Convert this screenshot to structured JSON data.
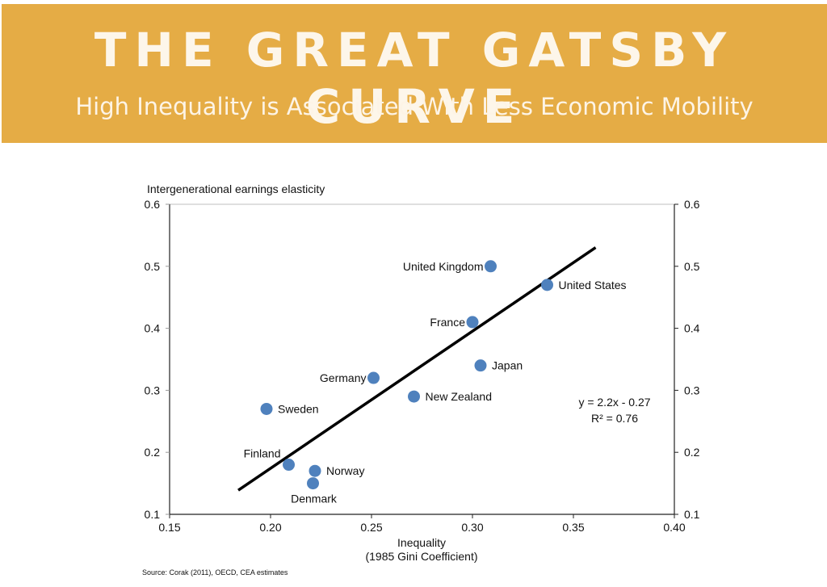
{
  "header": {
    "title": "THE GREAT GATSBY CURVE",
    "subtitle": "High Inequality is Associated With Less Economic Mobility",
    "background_color": "#e5ac45",
    "text_color": "#fdf6ea"
  },
  "source": "Source: Corak (2011), OECD, CEA estimates",
  "chart_data": {
    "type": "scatter",
    "title": "",
    "xlabel": "Inequality",
    "xlabel_line2": "(1985 Gini Coefficient)",
    "ylabel": "Intergenerational earnings elasticity",
    "xlim": [
      0.15,
      0.4
    ],
    "ylim": [
      0.1,
      0.6
    ],
    "x_ticks": [
      "0.15",
      "0.20",
      "0.25",
      "0.30",
      "0.35",
      "0.40"
    ],
    "y_ticks": [
      "0.1",
      "0.2",
      "0.3",
      "0.4",
      "0.5",
      "0.6"
    ],
    "y_ticks_right": [
      "0.1",
      "0.2",
      "0.3",
      "0.4",
      "0.5",
      "0.6"
    ],
    "grid": false,
    "marker_color": "#4f81bd",
    "points": [
      {
        "label": "United Kingdom",
        "x": 0.309,
        "y": 0.5,
        "label_side": "left"
      },
      {
        "label": "United States",
        "x": 0.337,
        "y": 0.47,
        "label_side": "right"
      },
      {
        "label": "France",
        "x": 0.3,
        "y": 0.41,
        "label_side": "left"
      },
      {
        "label": "Japan",
        "x": 0.304,
        "y": 0.34,
        "label_side": "right"
      },
      {
        "label": "Germany",
        "x": 0.251,
        "y": 0.32,
        "label_side": "left"
      },
      {
        "label": "New Zealand",
        "x": 0.271,
        "y": 0.29,
        "label_side": "right"
      },
      {
        "label": "Sweden",
        "x": 0.198,
        "y": 0.27,
        "label_side": "right"
      },
      {
        "label": "Finland",
        "x": 0.209,
        "y": 0.18,
        "label_side": "above-left"
      },
      {
        "label": "Norway",
        "x": 0.222,
        "y": 0.17,
        "label_side": "right"
      },
      {
        "label": "Denmark",
        "x": 0.221,
        "y": 0.15,
        "label_side": "below"
      }
    ],
    "trendline": {
      "equation": "y = 2.2x - 0.27",
      "r_squared": "R² = 0.76",
      "x_start": 0.184,
      "x_end": 0.361,
      "slope": 2.2,
      "intercept": -0.27,
      "color": "#000000"
    }
  }
}
